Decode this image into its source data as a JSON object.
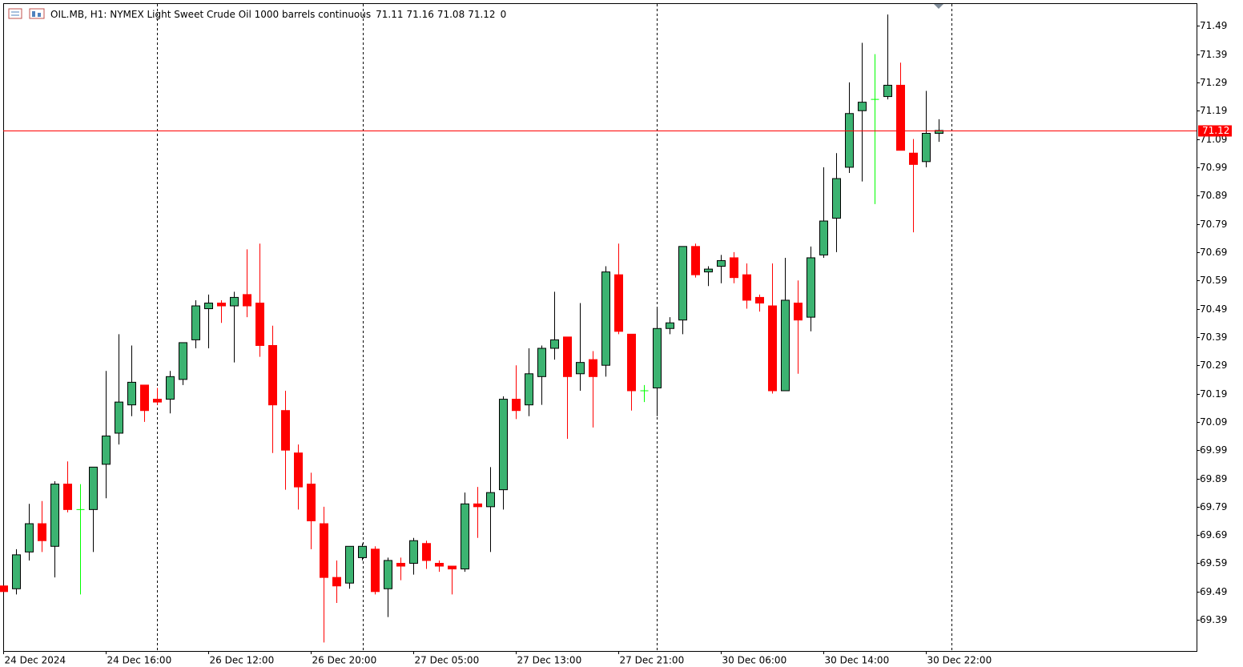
{
  "chart_data": {
    "type": "candlestick",
    "title": "OIL.MB, H1:  NYMEX Light Sweet Crude Oil 1000 barrels continuous",
    "ohlc": [
      71.11,
      71.16,
      71.08,
      71.12
    ],
    "volume": 0,
    "categories": [
      "24 Dec 2024",
      null,
      null,
      null,
      null,
      null,
      null,
      null,
      "24 Dec 16:00",
      null,
      null,
      null,
      null,
      null,
      null,
      null,
      "26 Dec 12:00",
      null,
      null,
      null,
      null,
      null,
      null,
      null,
      "26 Dec 20:00",
      null,
      null,
      null,
      null,
      null,
      null,
      null,
      "27 Dec 05:00",
      null,
      null,
      null,
      null,
      null,
      null,
      null,
      "27 Dec 13:00",
      null,
      null,
      null,
      null,
      null,
      null,
      null,
      "27 Dec 21:00",
      null,
      null,
      null,
      null,
      null,
      null,
      null,
      "30 Dec 06:00",
      null,
      null,
      null,
      null,
      null,
      null,
      null,
      "30 Dec 14:00",
      null,
      null,
      null,
      null,
      null,
      null,
      null,
      "30 Dec 22:00",
      null
    ],
    "open": [
      69.51,
      69.5,
      69.63,
      69.73,
      69.65,
      69.87,
      69.78,
      69.78,
      69.94,
      70.05,
      70.15,
      70.22,
      70.17,
      70.17,
      70.24,
      70.38,
      70.49,
      70.51,
      70.5,
      70.54,
      70.51,
      70.36,
      70.13,
      69.98,
      69.87,
      69.73,
      69.54,
      69.52,
      69.61,
      69.64,
      69.5,
      69.59,
      69.59,
      69.66,
      69.59,
      69.58,
      69.57,
      69.8,
      69.79,
      69.85,
      70.17,
      70.15,
      70.25,
      70.35,
      70.39,
      70.26,
      70.31,
      70.29,
      70.61,
      70.4,
      70.2,
      70.21,
      70.42,
      70.45,
      70.71,
      70.62,
      70.64,
      70.67,
      70.61,
      70.53,
      70.5,
      70.2,
      70.51,
      70.46,
      70.68,
      70.81,
      70.99,
      71.19,
      71.23,
      71.24,
      71.28,
      71.04,
      71.01,
      71.11
    ],
    "high": [
      69.51,
      69.64,
      69.8,
      69.81,
      69.88,
      69.95,
      69.87,
      69.93,
      70.27,
      70.4,
      70.36,
      70.22,
      70.21,
      70.27,
      70.37,
      70.52,
      70.54,
      70.52,
      70.55,
      70.7,
      70.72,
      70.43,
      70.2,
      70.01,
      69.91,
      69.79,
      69.6,
      69.65,
      69.66,
      69.65,
      69.61,
      69.61,
      69.68,
      69.67,
      69.6,
      69.58,
      69.84,
      69.86,
      69.93,
      70.18,
      70.29,
      70.35,
      70.36,
      70.55,
      70.39,
      70.51,
      70.34,
      70.64,
      70.72,
      70.4,
      70.22,
      70.49,
      70.46,
      70.71,
      70.72,
      70.64,
      70.68,
      70.69,
      70.65,
      70.54,
      70.65,
      70.67,
      70.59,
      70.71,
      70.99,
      71.04,
      71.29,
      71.43,
      71.39,
      71.53,
      71.36,
      71.09,
      71.26,
      71.16
    ],
    "low": [
      69.49,
      69.48,
      69.6,
      69.63,
      69.54,
      69.77,
      69.48,
      69.63,
      69.82,
      70.01,
      70.11,
      70.09,
      70.15,
      70.12,
      70.22,
      70.35,
      70.35,
      70.44,
      70.3,
      70.46,
      70.32,
      69.98,
      69.85,
      69.78,
      69.64,
      69.31,
      69.45,
      69.5,
      69.6,
      69.48,
      69.4,
      69.53,
      69.55,
      69.57,
      69.56,
      69.48,
      69.56,
      69.68,
      69.63,
      69.78,
      70.1,
      70.11,
      70.15,
      70.31,
      70.03,
      70.2,
      70.07,
      70.25,
      70.4,
      70.13,
      70.16,
      70.11,
      70.4,
      70.4,
      70.6,
      70.57,
      70.58,
      70.58,
      70.49,
      70.48,
      70.19,
      70.2,
      70.26,
      70.41,
      70.67,
      70.69,
      70.97,
      70.94,
      70.86,
      71.23,
      71.05,
      70.76,
      70.99,
      71.08
    ],
    "close": [
      69.49,
      69.62,
      69.73,
      69.67,
      69.87,
      69.78,
      69.78,
      69.93,
      70.04,
      70.16,
      70.23,
      70.13,
      70.16,
      70.25,
      70.37,
      70.5,
      70.51,
      70.5,
      70.53,
      70.5,
      70.36,
      70.15,
      69.99,
      69.86,
      69.74,
      69.54,
      69.51,
      69.65,
      69.65,
      69.49,
      69.6,
      69.58,
      69.67,
      69.6,
      69.58,
      69.57,
      69.8,
      69.79,
      69.84,
      70.17,
      70.13,
      70.26,
      70.35,
      70.38,
      70.25,
      70.3,
      70.25,
      70.62,
      70.41,
      70.2,
      70.2,
      70.42,
      70.44,
      70.71,
      70.61,
      70.63,
      70.66,
      70.6,
      70.52,
      70.51,
      70.2,
      70.52,
      70.45,
      70.67,
      70.8,
      70.95,
      71.18,
      71.22,
      71.23,
      71.28,
      71.05,
      71.0,
      71.11,
      71.12
    ],
    "up_color": "#3cb371",
    "down_color": "#ff0000",
    "doji_color": "#00ff00",
    "last_price": 71.12,
    "last_price_color": "#ff0000",
    "ylim": [
      69.28,
      71.57
    ],
    "yticks": [
      69.39,
      69.49,
      69.59,
      69.69,
      69.79,
      69.89,
      69.99,
      70.09,
      70.19,
      70.29,
      70.39,
      70.49,
      70.59,
      70.69,
      70.79,
      70.89,
      70.99,
      71.09,
      71.19,
      71.29,
      71.39,
      71.49
    ],
    "grid": false
  }
}
